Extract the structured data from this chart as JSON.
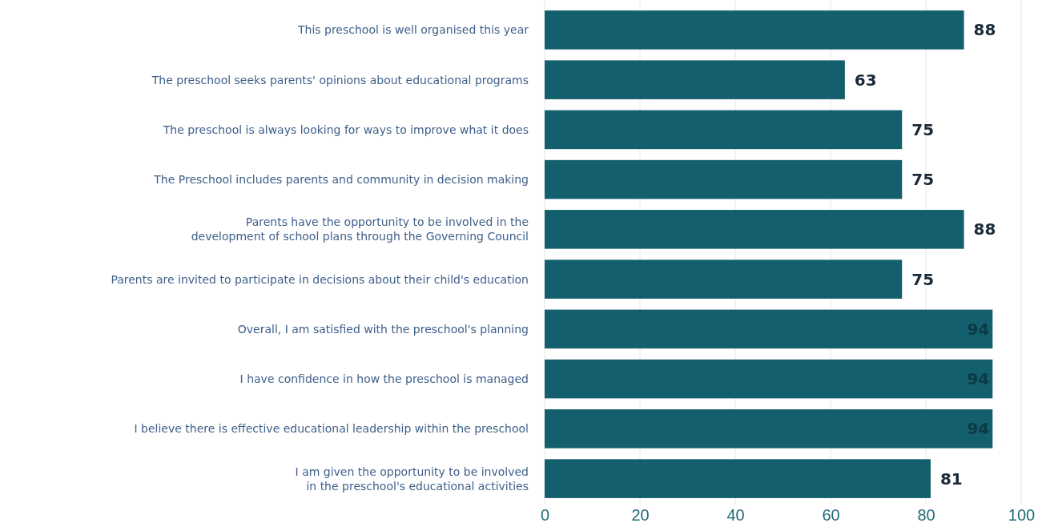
{
  "chart_data": {
    "type": "bar",
    "orientation": "horizontal",
    "categories": [
      "This preschool is well organised this year",
      "The preschool seeks parents' opinions about educational programs",
      "The preschool is always looking for ways to improve what it does",
      "The Preschool includes parents and community in decision making",
      "Parents have the opportunity to be involved in the\ndevelopment of school plans through the Governing Council",
      "Parents are invited to participate in decisions about their child's education",
      "Overall, I am satisfied with the preschool's planning",
      "I have confidence in how the preschool is managed",
      "I believe there is effective educational leadership within the preschool",
      "I am given the opportunity to be involved\nin the preschool's educational activities"
    ],
    "values": [
      88,
      63,
      75,
      75,
      88,
      75,
      94,
      94,
      94,
      81
    ],
    "color": "#135f6d",
    "xlim": [
      0,
      100
    ],
    "xticks": [
      0,
      20,
      40,
      60,
      80,
      100
    ],
    "grid": "x",
    "data_labels": true
  }
}
